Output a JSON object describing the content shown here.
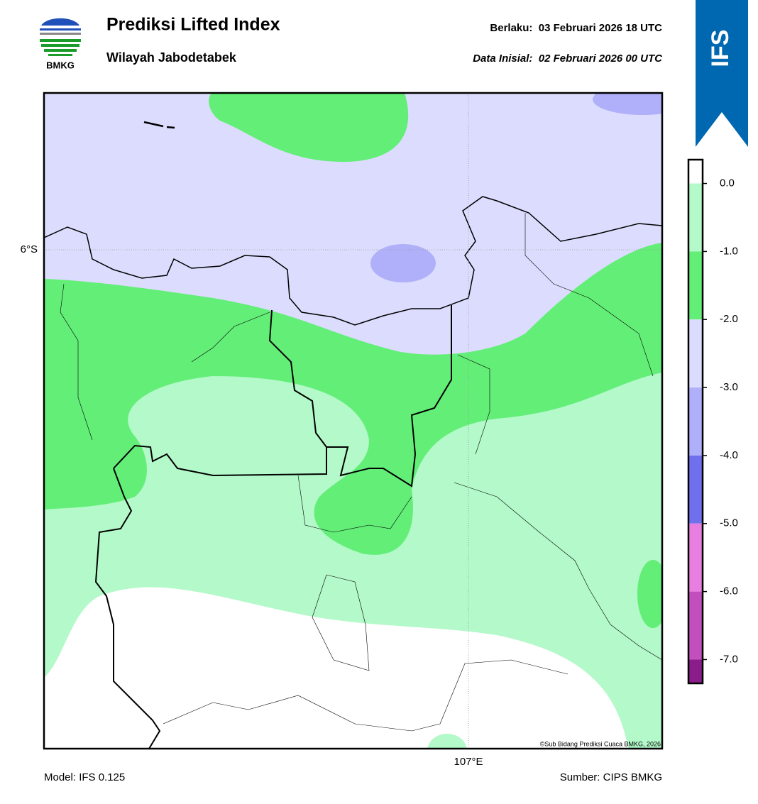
{
  "header": {
    "logo_text": "BMKG",
    "title": "Prediksi Lifted Index",
    "subtitle": "Wilayah Jabodetabek",
    "valid": "Berlaku:  03 Februari 2026 18 UTC",
    "init": "Data Inisial:  02 Februari 2026 00 UTC",
    "badge": "IFS"
  },
  "map": {
    "lat_label": "6°S",
    "lon_label": "107°E",
    "credit": "©Sub Bidang Prediksi Cuaca BMKG, 2026"
  },
  "colorbar": {
    "lim": [
      -7.35,
      0.35
    ],
    "ticks": [
      {
        "value": 0,
        "label": "0.0"
      },
      {
        "value": -1,
        "label": "-1.0"
      },
      {
        "value": -2,
        "label": "-2.0"
      },
      {
        "value": -3,
        "label": "-3.0"
      },
      {
        "value": -4,
        "label": "-4.0"
      },
      {
        "value": -5,
        "label": "-5.0"
      },
      {
        "value": -6,
        "label": "-6.0"
      },
      {
        "value": -7,
        "label": "-7.0"
      }
    ],
    "colors": [
      "#ffffff",
      "#b3f9c9",
      "#63ee78",
      "#dcdcfe",
      "#b0b0fa",
      "#7070ee",
      "#e87ee0",
      "#c34fbd",
      "#8b1c8b"
    ]
  },
  "footer": {
    "model": "Model: IFS 0.125",
    "source": "Sumber: CIPS BMKG"
  }
}
